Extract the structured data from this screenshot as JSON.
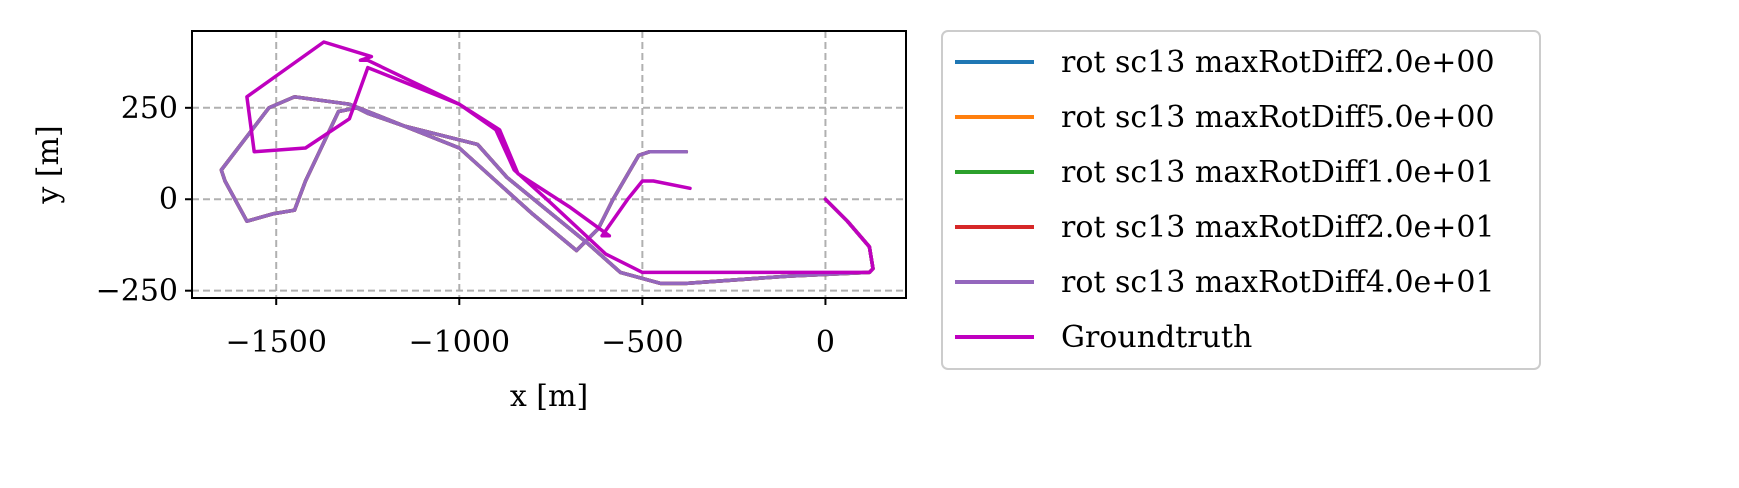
{
  "chart_data": {
    "type": "line",
    "title": "",
    "xlabel": "x [m]",
    "ylabel": "y [m]",
    "xlim": [
      -1730,
      220
    ],
    "ylim": [
      -270,
      460
    ],
    "xticks": [
      -1500,
      -1000,
      -500,
      0
    ],
    "xtick_labels": [
      "−1500",
      "−1000",
      "−500",
      "0"
    ],
    "yticks": [
      -250,
      0,
      250
    ],
    "ytick_labels": [
      "−250",
      "0",
      "250"
    ],
    "grid": true,
    "legend_position": "outside-right",
    "series": [
      {
        "name": "rot sc13 maxRotDiff2.0e+00",
        "color": "#1f77b4",
        "x": [
          -380,
          -480,
          -510,
          -580,
          -620,
          -680,
          -800,
          -900,
          -1000,
          -1300,
          -1450,
          -1520,
          -1650,
          -1640,
          -1580,
          -1510,
          -1450,
          -1420,
          -1330,
          -1280,
          -1250,
          -1150,
          -950,
          -870,
          -650,
          -560,
          -450,
          -380,
          -100,
          120,
          130,
          120,
          60,
          0
        ],
        "y": [
          130,
          130,
          120,
          0,
          -80,
          -140,
          -40,
          50,
          140,
          260,
          280,
          250,
          80,
          50,
          -60,
          -40,
          -30,
          50,
          240,
          250,
          235,
          200,
          150,
          60,
          -120,
          -200,
          -230,
          -230,
          -210,
          -200,
          -190,
          -130,
          -60,
          0
        ]
      },
      {
        "name": "rot sc13 maxRotDiff5.0e+00",
        "color": "#ff7f0e",
        "x": [
          -380,
          -480,
          -510,
          -580,
          -620,
          -680,
          -800,
          -900,
          -1000,
          -1300,
          -1450,
          -1520,
          -1650,
          -1640,
          -1580,
          -1510,
          -1450,
          -1420,
          -1330,
          -1280,
          -1250,
          -1150,
          -950,
          -870,
          -650,
          -560,
          -450,
          -380,
          -100,
          120,
          130,
          120,
          60,
          0
        ],
        "y": [
          130,
          130,
          120,
          0,
          -80,
          -140,
          -40,
          50,
          140,
          260,
          280,
          250,
          80,
          50,
          -60,
          -40,
          -30,
          50,
          240,
          250,
          235,
          200,
          150,
          60,
          -120,
          -200,
          -230,
          -230,
          -210,
          -200,
          -190,
          -130,
          -60,
          0
        ]
      },
      {
        "name": "rot sc13 maxRotDiff1.0e+01",
        "color": "#2ca02c",
        "x": [
          -380,
          -480,
          -510,
          -580,
          -620,
          -680,
          -800,
          -900,
          -1000,
          -1300,
          -1450,
          -1520,
          -1650,
          -1640,
          -1580,
          -1510,
          -1450,
          -1420,
          -1330,
          -1280,
          -1250,
          -1150,
          -950,
          -870,
          -650,
          -560,
          -450,
          -380,
          -100,
          120,
          130,
          120,
          60,
          0
        ],
        "y": [
          130,
          130,
          120,
          0,
          -80,
          -140,
          -40,
          50,
          140,
          260,
          280,
          250,
          80,
          50,
          -60,
          -40,
          -30,
          50,
          240,
          250,
          235,
          200,
          150,
          60,
          -120,
          -200,
          -230,
          -230,
          -210,
          -200,
          -190,
          -130,
          -60,
          0
        ]
      },
      {
        "name": "rot sc13 maxRotDiff2.0e+01",
        "color": "#d62728",
        "x": [
          -380,
          -480,
          -510,
          -580,
          -620,
          -680,
          -800,
          -900,
          -1000,
          -1300,
          -1450,
          -1520,
          -1650,
          -1640,
          -1580,
          -1510,
          -1450,
          -1420,
          -1330,
          -1280,
          -1250,
          -1150,
          -950,
          -870,
          -650,
          -560,
          -450,
          -380,
          -100,
          120,
          130,
          120,
          60,
          0
        ],
        "y": [
          130,
          130,
          120,
          0,
          -80,
          -140,
          -40,
          50,
          140,
          260,
          280,
          250,
          80,
          50,
          -60,
          -40,
          -30,
          50,
          240,
          250,
          235,
          200,
          150,
          60,
          -120,
          -200,
          -230,
          -230,
          -210,
          -200,
          -190,
          -130,
          -60,
          0
        ]
      },
      {
        "name": "rot sc13 maxRotDiff4.0e+01",
        "color": "#9467bd",
        "x": [
          -380,
          -480,
          -510,
          -580,
          -620,
          -680,
          -800,
          -900,
          -1000,
          -1300,
          -1450,
          -1520,
          -1650,
          -1640,
          -1580,
          -1510,
          -1450,
          -1420,
          -1330,
          -1280,
          -1250,
          -1150,
          -950,
          -870,
          -650,
          -560,
          -450,
          -380,
          -100,
          120,
          130,
          120,
          60,
          0
        ],
        "y": [
          130,
          130,
          120,
          0,
          -80,
          -140,
          -40,
          50,
          140,
          260,
          280,
          250,
          80,
          50,
          -60,
          -40,
          -30,
          50,
          240,
          250,
          235,
          200,
          150,
          60,
          -120,
          -200,
          -230,
          -230,
          -210,
          -200,
          -190,
          -130,
          -60,
          0
        ]
      },
      {
        "name": "Groundtruth",
        "color": "#bf00bf",
        "x": [
          -370,
          -470,
          -500,
          -540,
          -610,
          -590,
          -700,
          -840,
          -890,
          -1000,
          -1250,
          -1270,
          -1240,
          -1370,
          -1580,
          -1560,
          -1420,
          -1300,
          -1250,
          -1000,
          -900,
          -850,
          -750,
          -600,
          -500,
          -300,
          120,
          130,
          120,
          60,
          0
        ],
        "y": [
          30,
          50,
          50,
          0,
          -100,
          -100,
          -20,
          70,
          190,
          260,
          380,
          380,
          390,
          430,
          280,
          130,
          140,
          220,
          360,
          260,
          190,
          80,
          -10,
          -150,
          -200,
          -200,
          -200,
          -190,
          -130,
          -60,
          0
        ]
      }
    ]
  }
}
